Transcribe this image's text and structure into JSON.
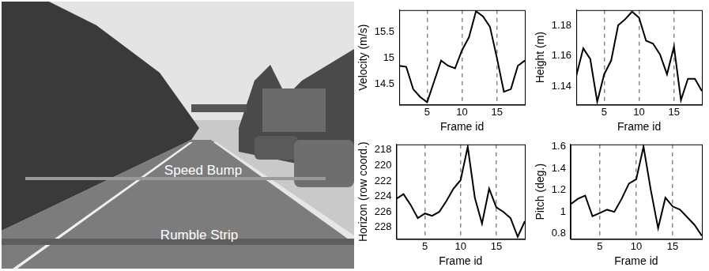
{
  "photo": {
    "labels": [
      "Speed Bump",
      "Rumble Strip"
    ]
  },
  "chart_data": [
    {
      "type": "line",
      "x_label": "Frame id",
      "y_label": "Velocity (m/s)",
      "color": "#000000",
      "line_style": "solid",
      "grid": "x",
      "x": [
        1,
        2,
        3,
        4,
        5,
        6,
        7,
        8,
        9,
        10,
        11,
        12,
        13,
        14,
        15,
        16,
        17,
        18,
        19
      ],
      "values": [
        14.85,
        14.83,
        14.4,
        14.25,
        14.15,
        14.55,
        14.95,
        14.85,
        14.8,
        15.15,
        15.4,
        15.9,
        15.8,
        15.6,
        15.0,
        14.35,
        14.4,
        14.85,
        14.95
      ],
      "xlim": [
        1,
        19
      ],
      "xticks": [
        5,
        10,
        15
      ],
      "ylim": [
        14.1,
        15.92
      ],
      "yticks": [
        14.5,
        15,
        15.5
      ]
    },
    {
      "type": "line",
      "x_label": "Frame id",
      "y_label": "Height (m)",
      "color": "#000000",
      "line_style": "solid",
      "grid": "x",
      "x": [
        1,
        2,
        3,
        4,
        5,
        6,
        7,
        8,
        9,
        10,
        11,
        12,
        13,
        14,
        15,
        16,
        17,
        18,
        19
      ],
      "values": [
        1.147,
        1.165,
        1.158,
        1.13,
        1.148,
        1.157,
        1.18,
        1.184,
        1.189,
        1.185,
        1.17,
        1.168,
        1.161,
        1.148,
        1.166,
        1.131,
        1.145,
        1.145,
        1.137
      ],
      "xlim": [
        1,
        19
      ],
      "xticks": [
        5,
        10,
        15
      ],
      "ylim": [
        1.128,
        1.19
      ],
      "yticks": [
        1.14,
        1.16,
        1.18
      ]
    },
    {
      "type": "line",
      "x_label": "Frame id",
      "y_label": "Horizon (row coord.)",
      "color": "#000000",
      "line_style": "solid",
      "grid": "x",
      "x": [
        1,
        2,
        3,
        4,
        5,
        6,
        7,
        8,
        9,
        10,
        11,
        12,
        13,
        14,
        15,
        16,
        17,
        18,
        19
      ],
      "values": [
        224.3,
        223.7,
        225.1,
        226.8,
        226.2,
        226.5,
        226.0,
        224.6,
        223.0,
        221.9,
        217.6,
        224.2,
        227.5,
        223.0,
        225.4,
        226.0,
        226.8,
        229.2,
        227.2
      ],
      "xlim": [
        1,
        19
      ],
      "xticks": [
        5,
        10,
        15
      ],
      "ylim": [
        229.5,
        217.3
      ],
      "yticks": [
        218,
        220,
        222,
        224,
        226,
        228
      ]
    },
    {
      "type": "line",
      "x_label": "Frame id",
      "y_label": "Pitch (deg.)",
      "color": "#000000",
      "line_style": "solid",
      "grid": "x",
      "x": [
        1,
        2,
        3,
        4,
        5,
        6,
        7,
        8,
        9,
        10,
        11,
        12,
        13,
        14,
        15,
        16,
        17,
        18,
        19
      ],
      "values": [
        1.07,
        1.12,
        1.15,
        0.96,
        0.99,
        1.02,
        1.0,
        1.12,
        1.26,
        1.3,
        1.6,
        1.2,
        0.85,
        1.13,
        1.05,
        1.02,
        0.95,
        0.88,
        0.78
      ],
      "xlim": [
        1,
        19
      ],
      "xticks": [
        5,
        10,
        15
      ],
      "ylim": [
        0.75,
        1.62
      ],
      "yticks": [
        0.8,
        1,
        1.2,
        1.4,
        1.6
      ]
    }
  ]
}
